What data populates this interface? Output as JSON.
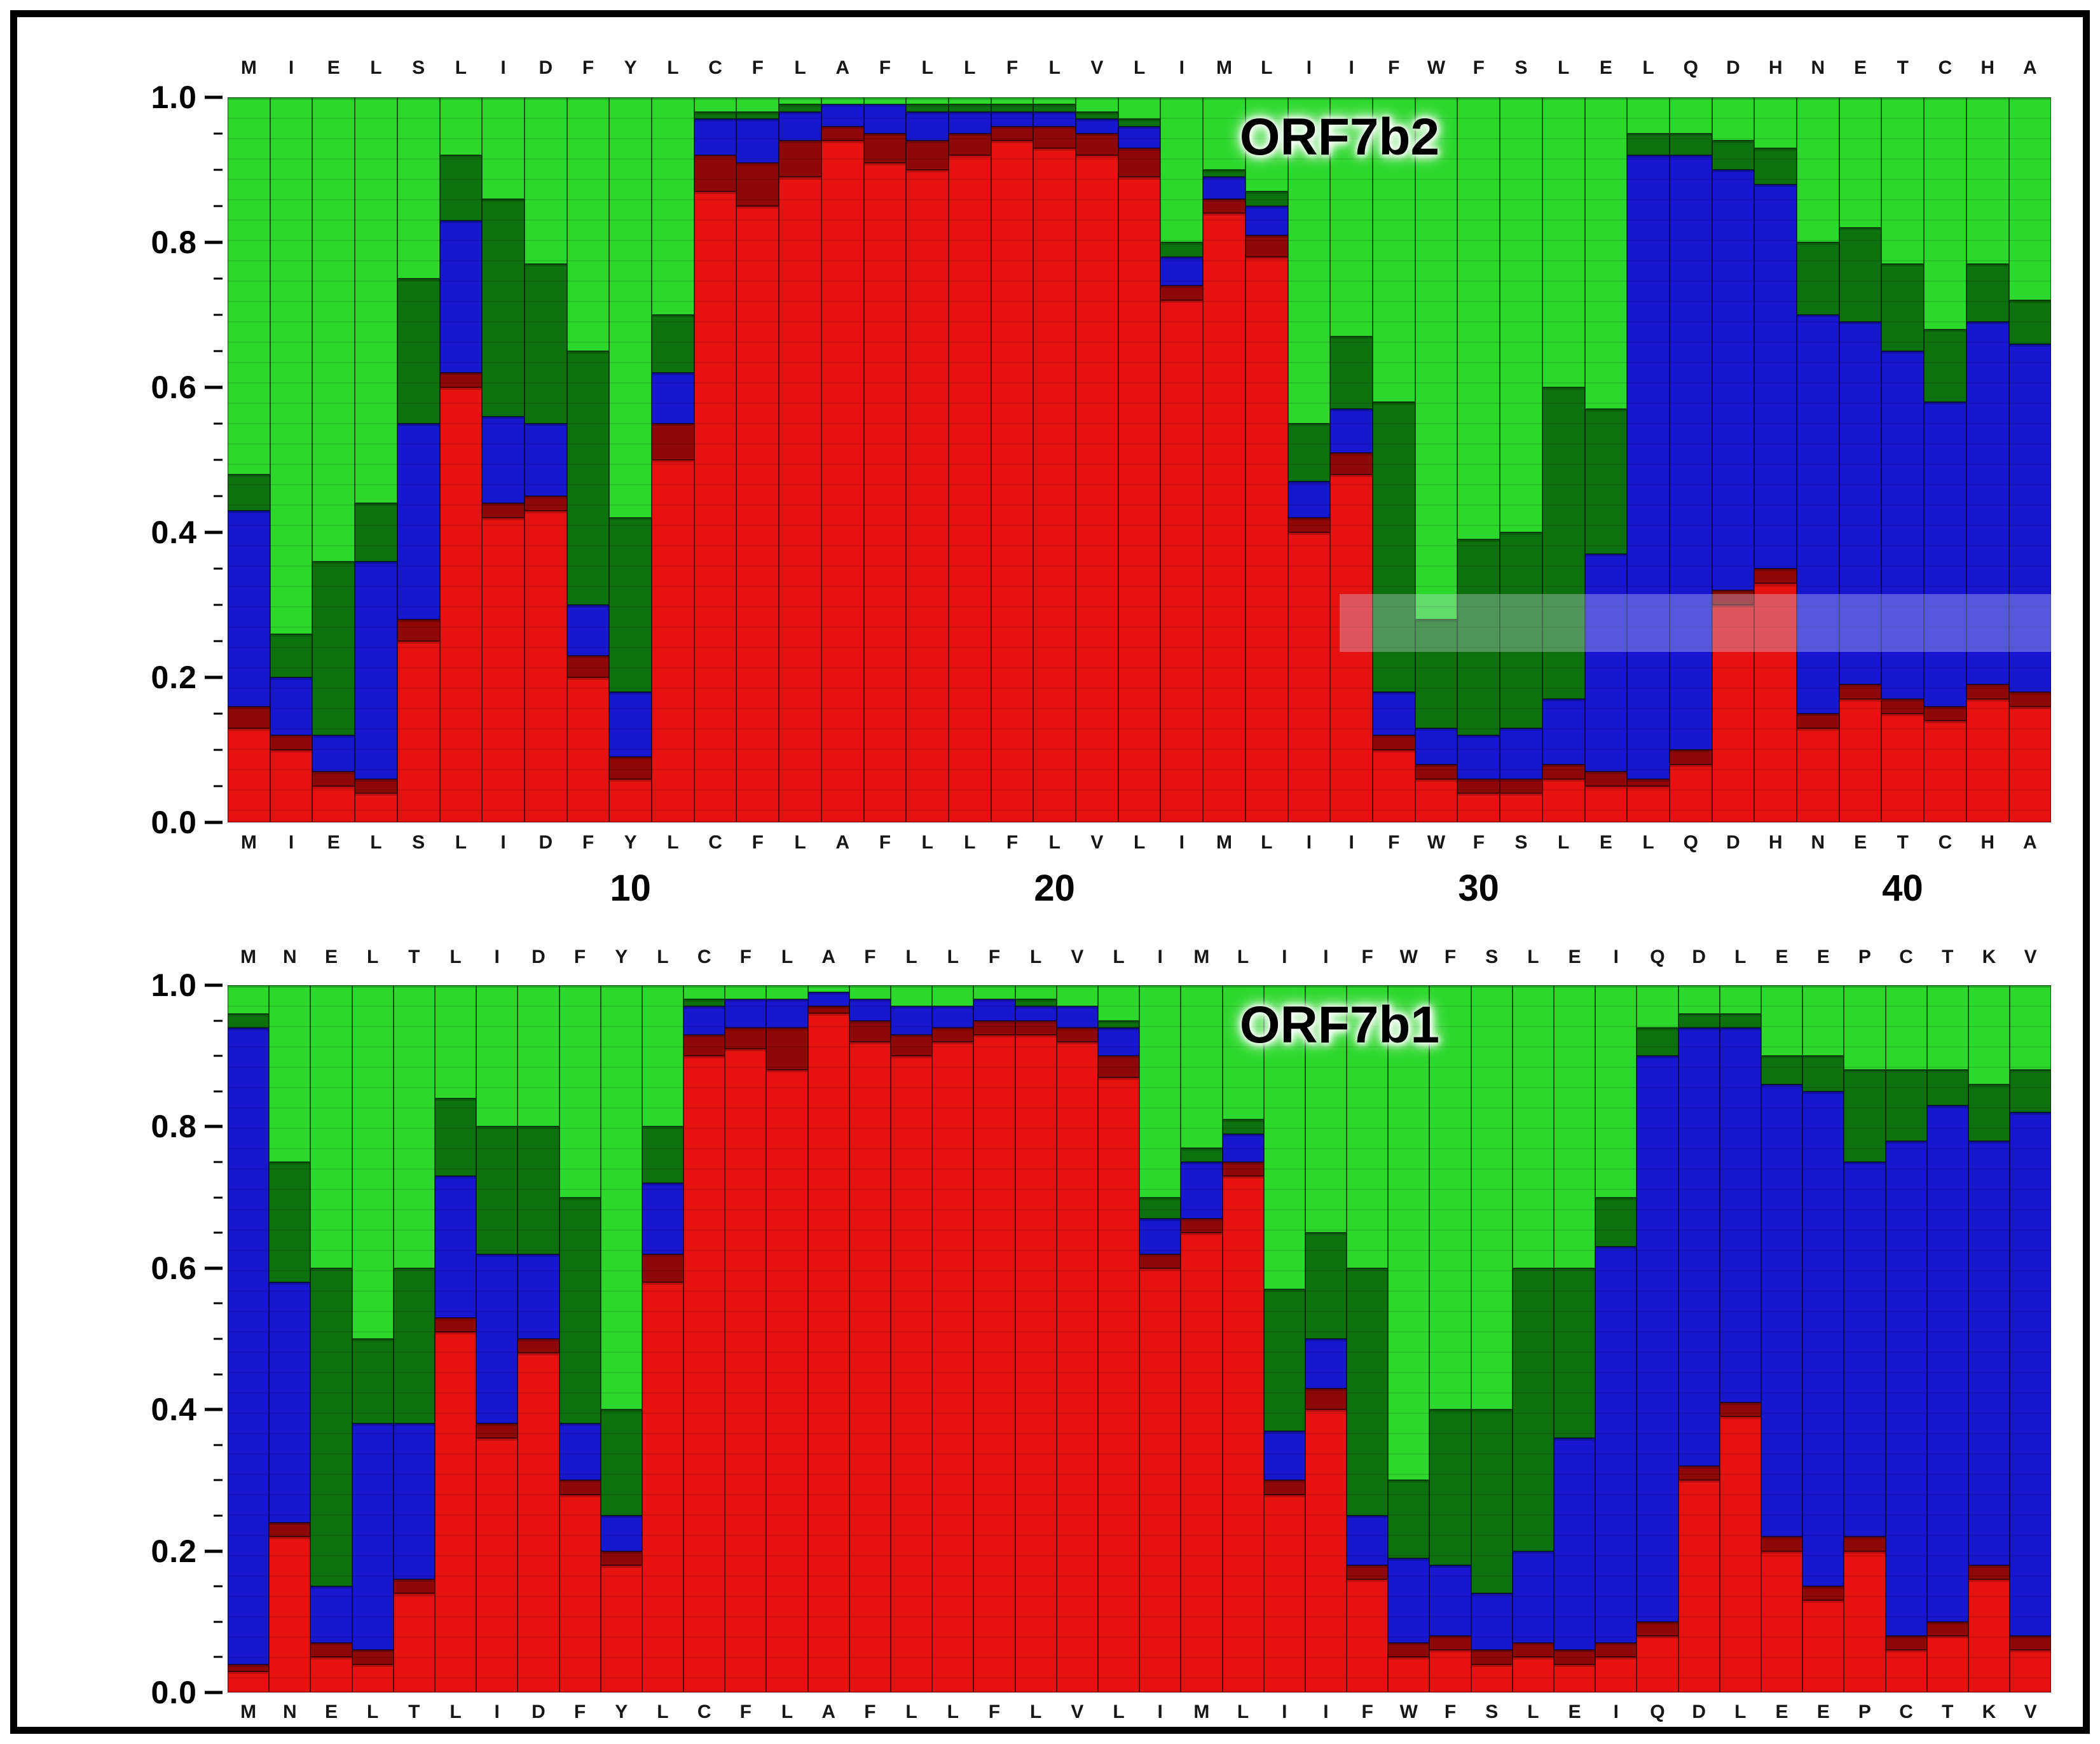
{
  "figure": {
    "background": "#ffffff",
    "border_color": "#000000"
  },
  "palette": {
    "red": "#e61212",
    "dark_red": "#8f0808",
    "blue": "#1717cf",
    "dark_green": "#0d720d",
    "green": "#2bd82b",
    "bar_border": "#000000"
  },
  "chart_data": [
    {
      "id": "orf7b2",
      "type": "stacked_bar",
      "title": "ORF7b2",
      "ylim": [
        0.0,
        1.0
      ],
      "y_ticks": [
        0.0,
        0.2,
        0.4,
        0.6,
        0.8,
        1.0
      ],
      "x_number_ticks": [
        {
          "label": "10",
          "position": 10
        },
        {
          "label": "20",
          "position": 20
        },
        {
          "label": "30",
          "position": 30
        },
        {
          "label": "40",
          "position": 40
        }
      ],
      "categories": [
        "M",
        "I",
        "E",
        "L",
        "S",
        "L",
        "I",
        "D",
        "F",
        "Y",
        "L",
        "C",
        "F",
        "L",
        "A",
        "F",
        "L",
        "L",
        "F",
        "L",
        "V",
        "L",
        "I",
        "M",
        "L",
        "I",
        "I",
        "F",
        "W",
        "F",
        "S",
        "L",
        "E",
        "L",
        "Q",
        "D",
        "H",
        "N",
        "E",
        "T",
        "C",
        "H",
        "A"
      ],
      "series": [
        {
          "name": "red",
          "color": "red",
          "values": [
            0.13,
            0.1,
            0.05,
            0.04,
            0.25,
            0.6,
            0.42,
            0.43,
            0.2,
            0.06,
            0.5,
            0.87,
            0.85,
            0.89,
            0.94,
            0.91,
            0.9,
            0.92,
            0.94,
            0.93,
            0.92,
            0.89,
            0.72,
            0.84,
            0.78,
            0.4,
            0.48,
            0.1,
            0.06,
            0.04,
            0.04,
            0.06,
            0.05,
            0.05,
            0.08,
            0.3,
            0.33,
            0.13,
            0.17,
            0.15,
            0.14,
            0.17,
            0.16
          ]
        },
        {
          "name": "dark_red",
          "color": "dark_red",
          "values": [
            0.03,
            0.02,
            0.02,
            0.02,
            0.03,
            0.02,
            0.02,
            0.02,
            0.03,
            0.03,
            0.05,
            0.05,
            0.06,
            0.05,
            0.02,
            0.04,
            0.04,
            0.03,
            0.02,
            0.03,
            0.03,
            0.04,
            0.02,
            0.02,
            0.03,
            0.02,
            0.03,
            0.02,
            0.02,
            0.02,
            0.02,
            0.02,
            0.02,
            0.01,
            0.02,
            0.02,
            0.02,
            0.02,
            0.02,
            0.02,
            0.02,
            0.02,
            0.02
          ]
        },
        {
          "name": "blue",
          "color": "blue",
          "values": [
            0.27,
            0.08,
            0.05,
            0.3,
            0.27,
            0.21,
            0.12,
            0.1,
            0.07,
            0.09,
            0.07,
            0.05,
            0.06,
            0.04,
            0.03,
            0.04,
            0.04,
            0.03,
            0.02,
            0.02,
            0.02,
            0.03,
            0.04,
            0.03,
            0.04,
            0.05,
            0.06,
            0.06,
            0.05,
            0.06,
            0.07,
            0.09,
            0.3,
            0.86,
            0.82,
            0.58,
            0.53,
            0.55,
            0.5,
            0.48,
            0.42,
            0.5,
            0.48
          ]
        },
        {
          "name": "dark_green",
          "color": "dark_green",
          "values": [
            0.05,
            0.06,
            0.24,
            0.08,
            0.2,
            0.09,
            0.3,
            0.22,
            0.35,
            0.24,
            0.08,
            0.01,
            0.01,
            0.01,
            0.0,
            0.0,
            0.01,
            0.01,
            0.01,
            0.01,
            0.01,
            0.01,
            0.02,
            0.01,
            0.02,
            0.08,
            0.1,
            0.4,
            0.15,
            0.27,
            0.27,
            0.43,
            0.2,
            0.03,
            0.03,
            0.04,
            0.05,
            0.1,
            0.13,
            0.12,
            0.1,
            0.08,
            0.06
          ]
        },
        {
          "name": "green",
          "color": "green",
          "values": [
            0.52,
            0.74,
            0.64,
            0.56,
            0.25,
            0.08,
            0.14,
            0.23,
            0.35,
            0.58,
            0.3,
            0.02,
            0.02,
            0.01,
            0.01,
            0.01,
            0.01,
            0.01,
            0.01,
            0.01,
            0.02,
            0.03,
            0.2,
            0.1,
            0.13,
            0.45,
            0.33,
            0.42,
            0.72,
            0.61,
            0.6,
            0.4,
            0.43,
            0.05,
            0.05,
            0.06,
            0.07,
            0.2,
            0.18,
            0.23,
            0.32,
            0.23,
            0.28
          ]
        }
      ]
    },
    {
      "id": "orf7b1",
      "type": "stacked_bar",
      "title": "ORF7b1",
      "ylim": [
        0.0,
        1.0
      ],
      "y_ticks": [
        0.0,
        0.2,
        0.4,
        0.6,
        0.8,
        1.0
      ],
      "x_number_ticks": [],
      "categories": [
        "M",
        "N",
        "E",
        "L",
        "T",
        "L",
        "I",
        "D",
        "F",
        "Y",
        "L",
        "C",
        "F",
        "L",
        "A",
        "F",
        "L",
        "L",
        "F",
        "L",
        "V",
        "L",
        "I",
        "M",
        "L",
        "I",
        "I",
        "F",
        "W",
        "F",
        "S",
        "L",
        "E",
        "I",
        "Q",
        "D",
        "L",
        "E",
        "E",
        "P",
        "C",
        "T",
        "K",
        "V"
      ],
      "series": [
        {
          "name": "red",
          "color": "red",
          "values": [
            0.03,
            0.22,
            0.05,
            0.04,
            0.14,
            0.51,
            0.36,
            0.48,
            0.28,
            0.18,
            0.58,
            0.9,
            0.91,
            0.88,
            0.96,
            0.92,
            0.9,
            0.92,
            0.93,
            0.93,
            0.92,
            0.87,
            0.6,
            0.65,
            0.73,
            0.28,
            0.4,
            0.16,
            0.05,
            0.06,
            0.04,
            0.05,
            0.04,
            0.05,
            0.08,
            0.3,
            0.39,
            0.2,
            0.13,
            0.2,
            0.06,
            0.08,
            0.16,
            0.06
          ]
        },
        {
          "name": "dark_red",
          "color": "dark_red",
          "values": [
            0.01,
            0.02,
            0.02,
            0.02,
            0.02,
            0.02,
            0.02,
            0.02,
            0.02,
            0.02,
            0.04,
            0.03,
            0.03,
            0.06,
            0.01,
            0.03,
            0.03,
            0.02,
            0.02,
            0.02,
            0.02,
            0.03,
            0.02,
            0.02,
            0.02,
            0.02,
            0.03,
            0.02,
            0.02,
            0.02,
            0.02,
            0.02,
            0.02,
            0.02,
            0.02,
            0.02,
            0.02,
            0.02,
            0.02,
            0.02,
            0.02,
            0.02,
            0.02,
            0.02
          ]
        },
        {
          "name": "blue",
          "color": "blue",
          "values": [
            0.9,
            0.34,
            0.08,
            0.32,
            0.22,
            0.2,
            0.24,
            0.12,
            0.08,
            0.05,
            0.1,
            0.04,
            0.04,
            0.04,
            0.02,
            0.03,
            0.04,
            0.03,
            0.03,
            0.02,
            0.03,
            0.04,
            0.05,
            0.08,
            0.04,
            0.07,
            0.07,
            0.07,
            0.12,
            0.1,
            0.08,
            0.13,
            0.3,
            0.56,
            0.8,
            0.62,
            0.53,
            0.64,
            0.7,
            0.53,
            0.7,
            0.73,
            0.6,
            0.74
          ]
        },
        {
          "name": "dark_green",
          "color": "dark_green",
          "values": [
            0.02,
            0.17,
            0.45,
            0.12,
            0.22,
            0.11,
            0.18,
            0.18,
            0.32,
            0.15,
            0.08,
            0.01,
            0.0,
            0.0,
            0.0,
            0.0,
            0.0,
            0.0,
            0.0,
            0.01,
            0.0,
            0.01,
            0.03,
            0.02,
            0.02,
            0.2,
            0.15,
            0.35,
            0.11,
            0.22,
            0.26,
            0.4,
            0.24,
            0.07,
            0.04,
            0.02,
            0.02,
            0.04,
            0.05,
            0.13,
            0.1,
            0.05,
            0.08,
            0.06
          ]
        },
        {
          "name": "green",
          "color": "green",
          "values": [
            0.04,
            0.25,
            0.4,
            0.5,
            0.4,
            0.16,
            0.2,
            0.2,
            0.3,
            0.6,
            0.2,
            0.02,
            0.02,
            0.02,
            0.01,
            0.02,
            0.03,
            0.03,
            0.02,
            0.02,
            0.03,
            0.05,
            0.3,
            0.23,
            0.19,
            0.43,
            0.35,
            0.4,
            0.7,
            0.6,
            0.6,
            0.4,
            0.4,
            0.3,
            0.06,
            0.04,
            0.04,
            0.1,
            0.1,
            0.12,
            0.12,
            0.12,
            0.14,
            0.12
          ]
        }
      ]
    }
  ]
}
